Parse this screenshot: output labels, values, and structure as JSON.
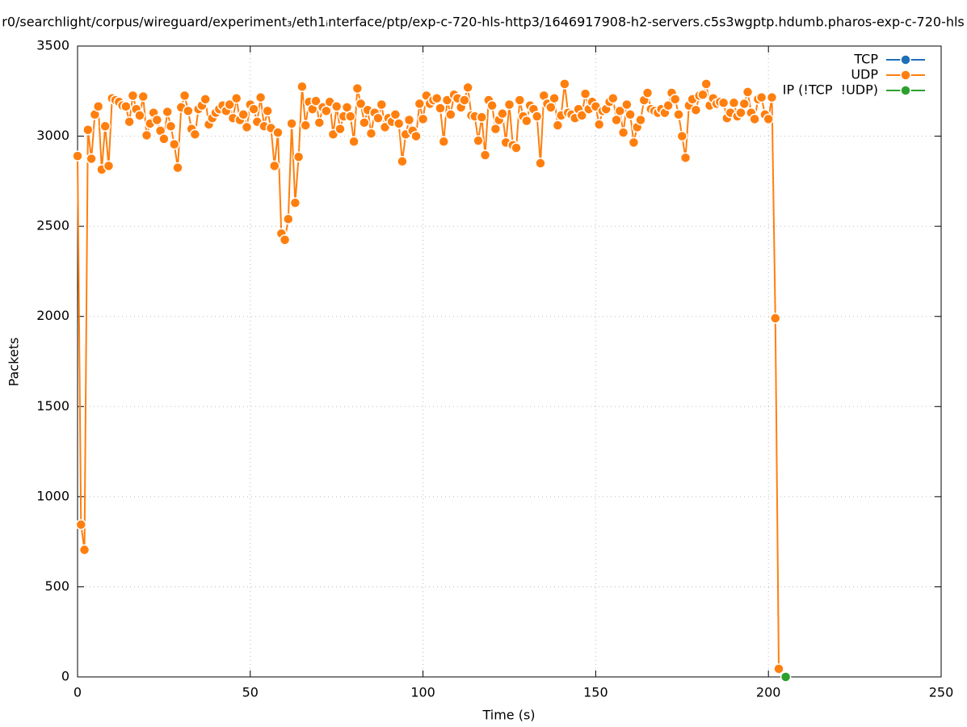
{
  "chart_data": {
    "type": "line",
    "title": "r0/searchlight/corpus/wireguard/experiment₃/eth1ᵢnterface/ptp/exp-c-720-hls-http3/1646917908-h2-servers.c5s3wgptp.hdumb.pharos-exp-c-720-hls",
    "xlabel": "Time (s)",
    "ylabel": "Packets",
    "xlim": [
      0,
      250
    ],
    "xticks": [
      0,
      50,
      100,
      150,
      200,
      250
    ],
    "ylim": [
      0,
      3500
    ],
    "yticks": [
      0,
      500,
      1000,
      1500,
      2000,
      2500,
      3000,
      3500
    ],
    "grid": true,
    "legend": "top-right",
    "series": [
      {
        "name": "TCP",
        "color": "#1f6fb5",
        "x": [],
        "values": []
      },
      {
        "name": "UDP",
        "color": "#ff7f0e",
        "x": [
          0,
          1,
          2,
          3,
          4,
          5,
          6,
          7,
          8,
          9,
          10,
          11,
          12,
          13,
          14,
          15,
          16,
          17,
          18,
          19,
          20,
          21,
          22,
          23,
          24,
          25,
          26,
          27,
          28,
          29,
          30,
          31,
          32,
          33,
          34,
          35,
          36,
          37,
          38,
          39,
          40,
          41,
          42,
          43,
          44,
          45,
          46,
          47,
          48,
          49,
          50,
          51,
          52,
          53,
          54,
          55,
          56,
          57,
          58,
          59,
          60,
          61,
          62,
          63,
          64,
          65,
          66,
          67,
          68,
          69,
          70,
          71,
          72,
          73,
          74,
          75,
          76,
          77,
          78,
          79,
          80,
          81,
          82,
          83,
          84,
          85,
          86,
          87,
          88,
          89,
          90,
          91,
          92,
          93,
          94,
          95,
          96,
          97,
          98,
          99,
          100,
          101,
          102,
          103,
          104,
          105,
          106,
          107,
          108,
          109,
          110,
          111,
          112,
          113,
          114,
          115,
          116,
          117,
          118,
          119,
          120,
          121,
          122,
          123,
          124,
          125,
          126,
          127,
          128,
          129,
          130,
          131,
          132,
          133,
          134,
          135,
          136,
          137,
          138,
          139,
          140,
          141,
          142,
          143,
          144,
          145,
          146,
          147,
          148,
          149,
          150,
          151,
          152,
          153,
          154,
          155,
          156,
          157,
          158,
          159,
          160,
          161,
          162,
          163,
          164,
          165,
          166,
          167,
          168,
          169,
          170,
          171,
          172,
          173,
          174,
          175,
          176,
          177,
          178,
          179,
          180,
          181,
          182,
          183,
          184,
          185,
          186,
          187,
          188,
          189,
          190,
          191,
          192,
          193,
          194,
          195,
          196,
          197,
          198,
          199,
          200,
          201,
          202,
          203
        ],
        "values": [
          2890,
          845,
          705,
          3035,
          2875,
          3120,
          3165,
          2815,
          3055,
          2835,
          3210,
          3200,
          3190,
          3170,
          3165,
          3080,
          3225,
          3150,
          3115,
          3220,
          3005,
          3070,
          3130,
          3090,
          3030,
          2985,
          3135,
          3055,
          2955,
          2825,
          3160,
          3225,
          3140,
          3040,
          3010,
          3150,
          3170,
          3205,
          3065,
          3100,
          3130,
          3150,
          3170,
          3140,
          3175,
          3100,
          3210,
          3090,
          3120,
          3050,
          3175,
          3150,
          3080,
          3215,
          3055,
          3140,
          3045,
          2835,
          3020,
          2460,
          2425,
          2540,
          3070,
          2630,
          2885,
          3275,
          3060,
          3190,
          3150,
          3195,
          3075,
          3160,
          3140,
          3190,
          3010,
          3165,
          3040,
          3110,
          3160,
          3110,
          2970,
          3265,
          3180,
          3075,
          3145,
          3015,
          3130,
          3100,
          3175,
          3050,
          3100,
          3080,
          3120,
          3070,
          2860,
          3010,
          3090,
          3030,
          3000,
          3180,
          3095,
          3225,
          3180,
          3200,
          3210,
          3155,
          2970,
          3200,
          3120,
          3230,
          3210,
          3160,
          3200,
          3270,
          3115,
          3110,
          2975,
          3105,
          2895,
          3200,
          3170,
          3040,
          3090,
          3125,
          2965,
          3175,
          2950,
          2935,
          3200,
          3110,
          3085,
          3170,
          3150,
          3110,
          2850,
          3225,
          3180,
          3160,
          3210,
          3060,
          3115,
          3290,
          3130,
          3120,
          3100,
          3150,
          3115,
          3235,
          3150,
          3190,
          3165,
          3065,
          3140,
          3150,
          3190,
          3210,
          3090,
          3140,
          3020,
          3175,
          3120,
          2965,
          3050,
          3090,
          3200,
          3240,
          3150,
          3140,
          3130,
          3150,
          3130,
          3170,
          3240,
          3205,
          3120,
          3000,
          2880,
          3170,
          3205,
          3145,
          3225,
          3230,
          3290,
          3170,
          3210,
          3180,
          3190,
          3185,
          3100,
          3130,
          3185,
          3110,
          3130,
          3180,
          3245,
          3130,
          3095,
          3205,
          3215,
          3120,
          3095,
          3215,
          1990,
          45
        ]
      },
      {
        "name": "IP (!TCP  !UDP)",
        "color": "#2ca02c",
        "x": [
          205
        ],
        "values": [
          0
        ]
      }
    ]
  }
}
